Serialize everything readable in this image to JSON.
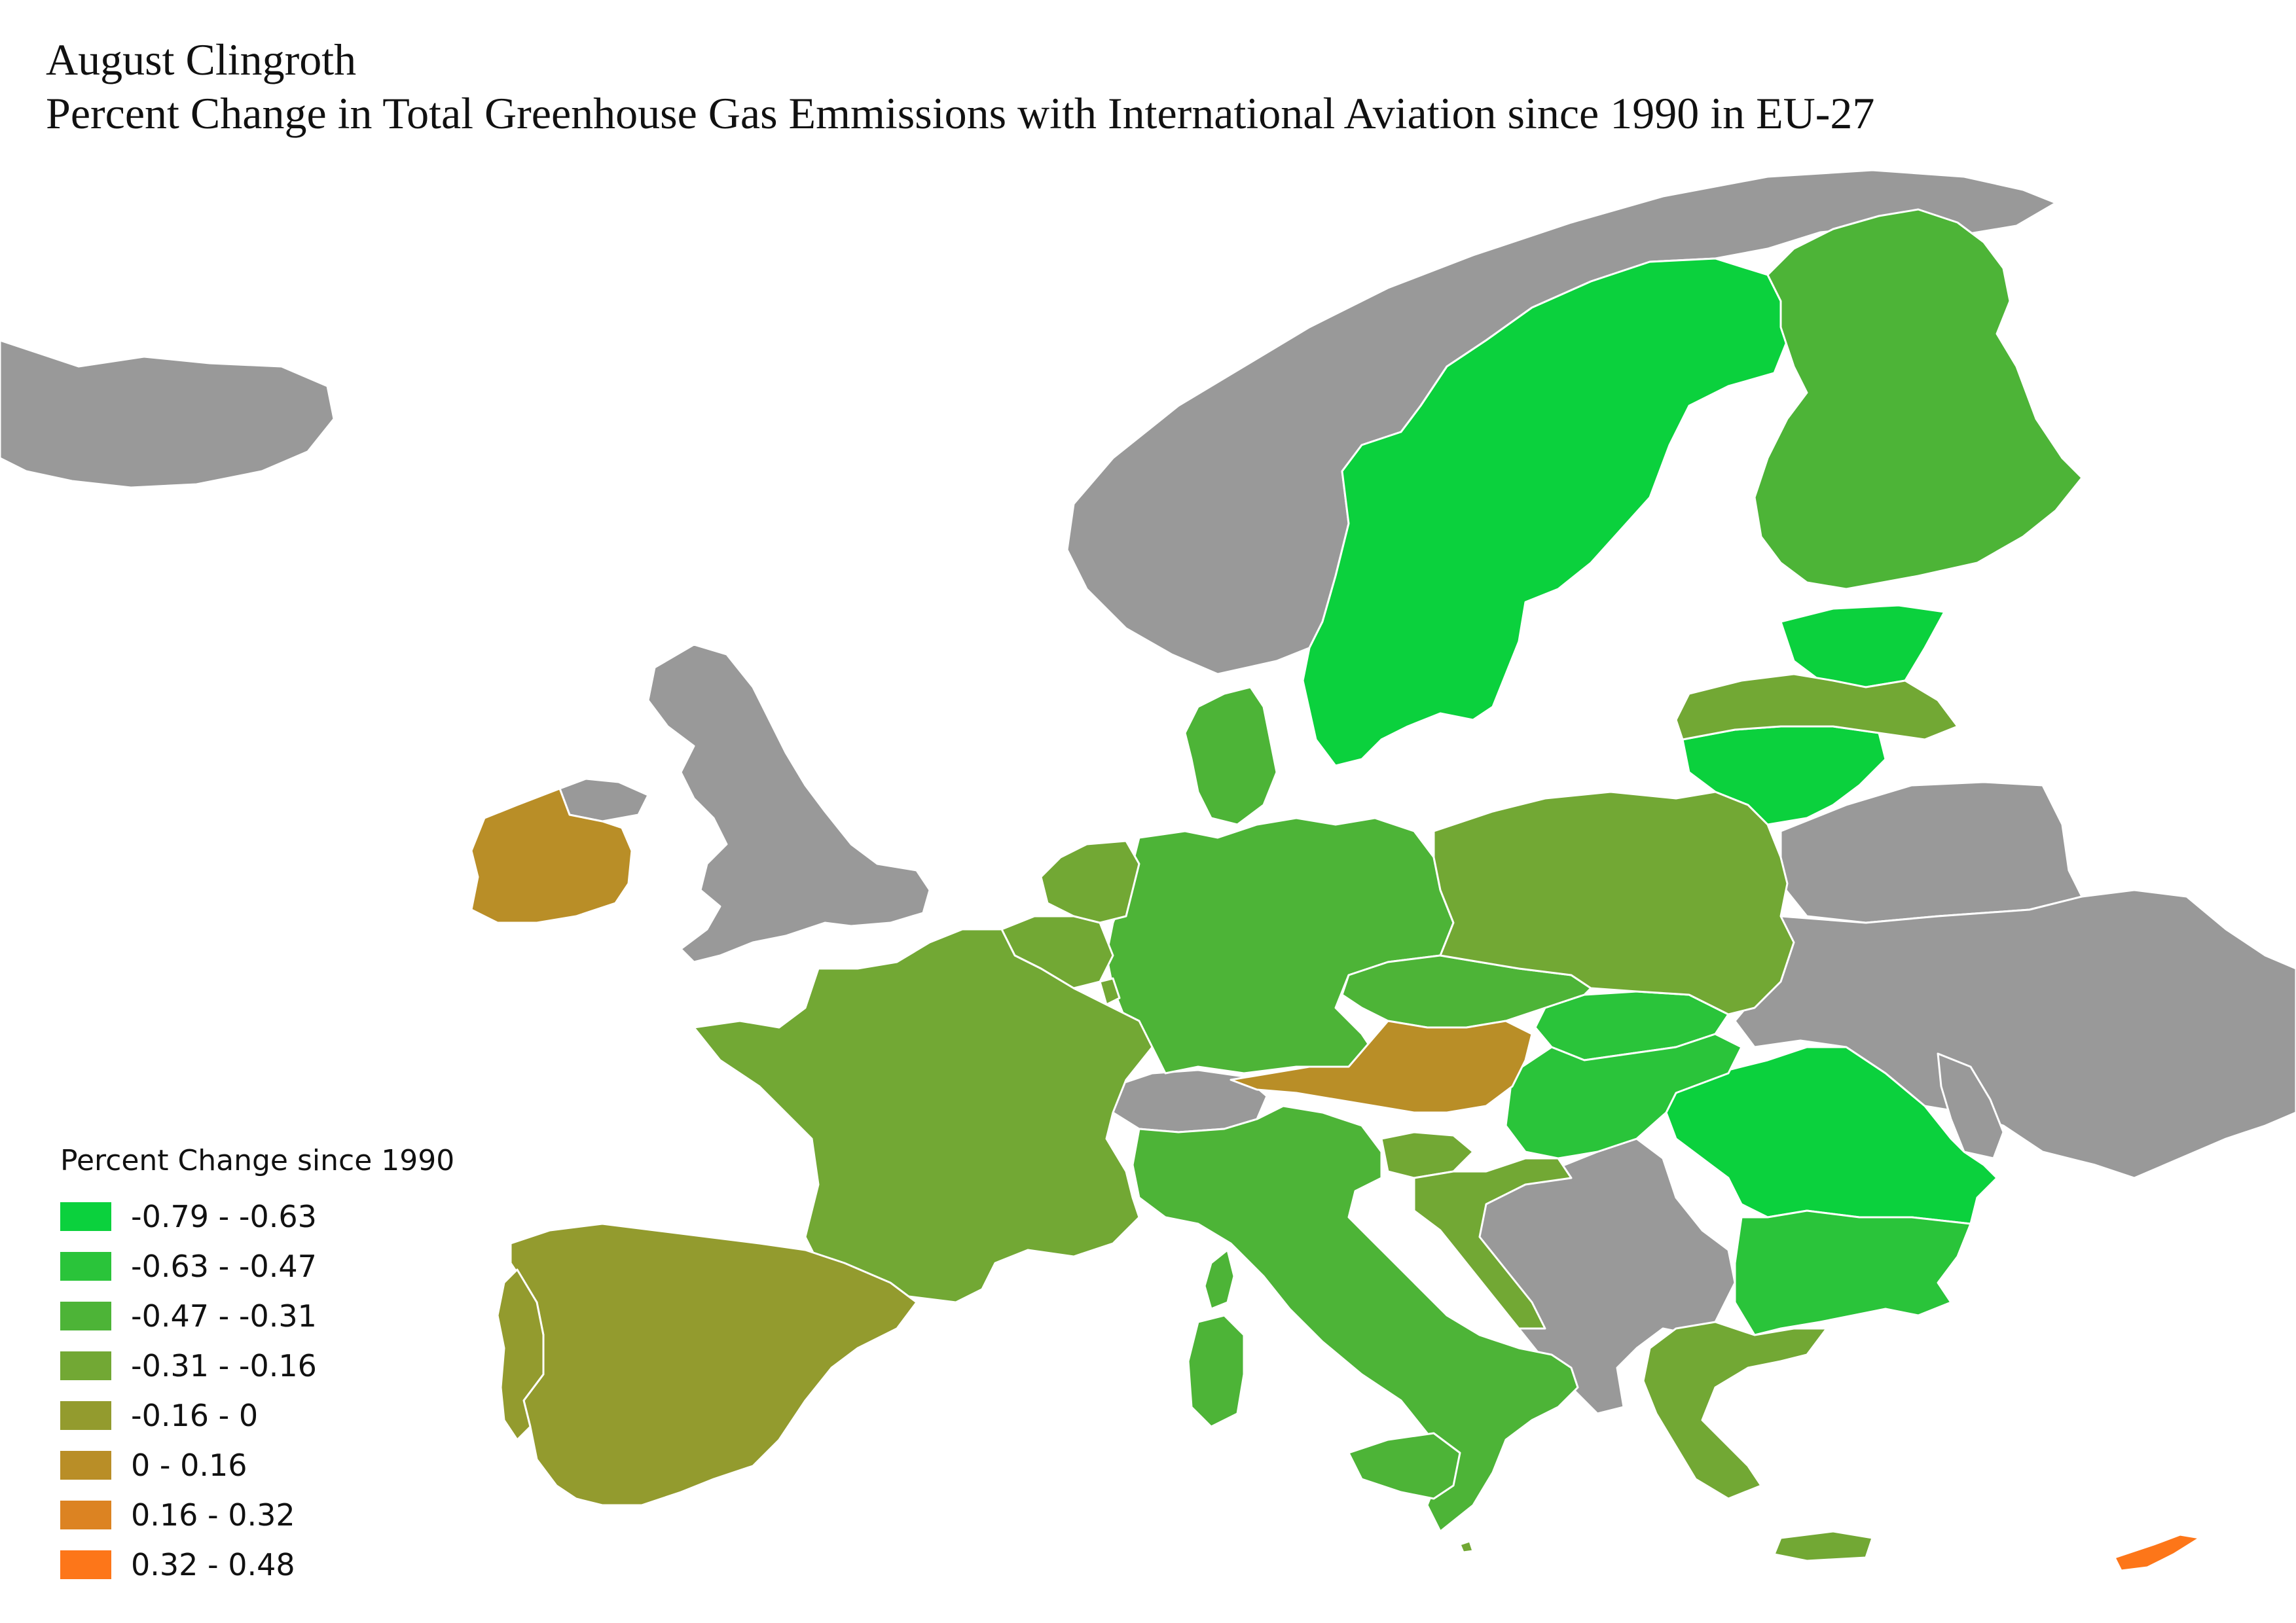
{
  "title": {
    "author": "August Clingroth",
    "main": "Percent Change in Total Greenhouse Gas Emmissions with International Aviation since 1990 in EU-27"
  },
  "legend": {
    "title": "Percent Change since 1990",
    "items": [
      {
        "label": "-0.79 - -0.63",
        "color": "#0bd13d"
      },
      {
        "label": "-0.63 - -0.47",
        "color": "#2ac43a"
      },
      {
        "label": "-0.47 - -0.31",
        "color": "#4db437"
      },
      {
        "label": "-0.31 - -0.16",
        "color": "#72a834"
      },
      {
        "label": "-0.16 - 0",
        "color": "#939b2e"
      },
      {
        "label": "0 - 0.16",
        "color": "#b98e27"
      },
      {
        "label": "0.16 - 0.32",
        "color": "#dc8322"
      },
      {
        "label": "0.32 - 0.48",
        "color": "#fd7619"
      }
    ]
  },
  "non_eu_color": "#999999"
}
